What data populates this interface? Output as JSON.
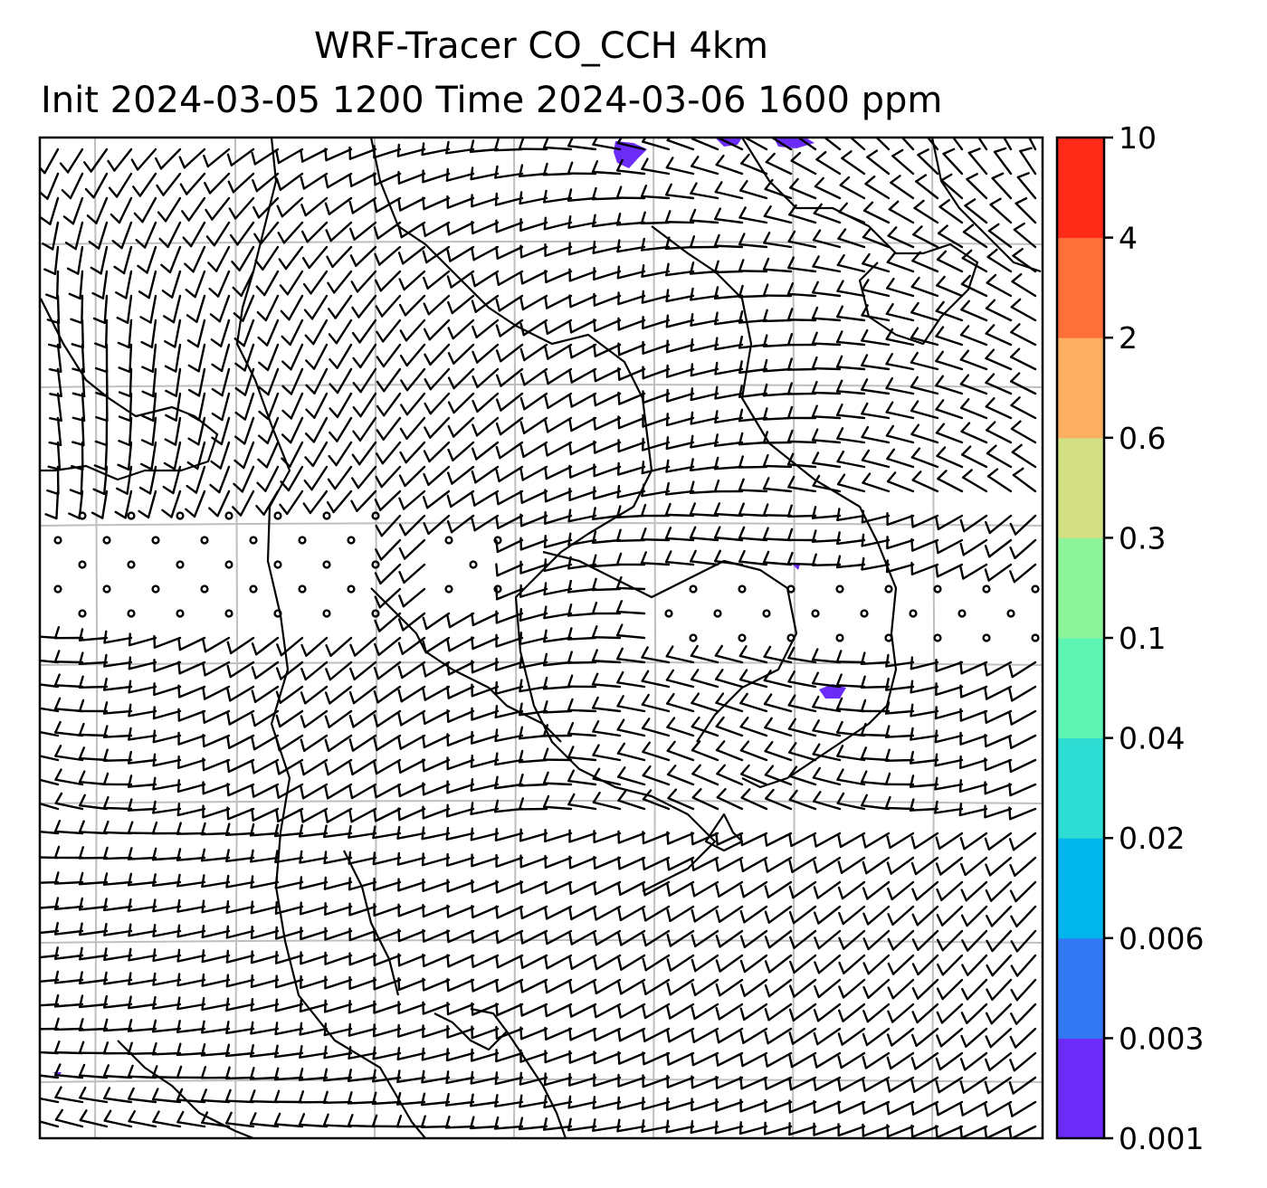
{
  "title": {
    "line1": "WRF-Tracer CO_CCH 4km",
    "line2": "Init 2024-03-05 1200 Time 2024-03-06 1600 ppm"
  },
  "colorbar": {
    "levels": [
      "0.001",
      "0.003",
      "0.006",
      "0.02",
      "0.04",
      "0.1",
      "0.3",
      "0.6",
      "2",
      "4",
      "10"
    ],
    "colors": [
      "#6b2cf8",
      "#3278f2",
      "#00b4ec",
      "#2ddcd2",
      "#5cf3b3",
      "#8cf59a",
      "#d2df82",
      "#fdaf61",
      "#ff6f3a",
      "#ff2a18"
    ]
  },
  "map": {
    "gridlines": "on",
    "features": [
      "coastlines",
      "country borders",
      "wind barbs",
      "calm circles"
    ],
    "tracer_patch_color": "#6b2cf8",
    "frame_color": "#000000",
    "grid_color": "#bfbfbf"
  }
}
